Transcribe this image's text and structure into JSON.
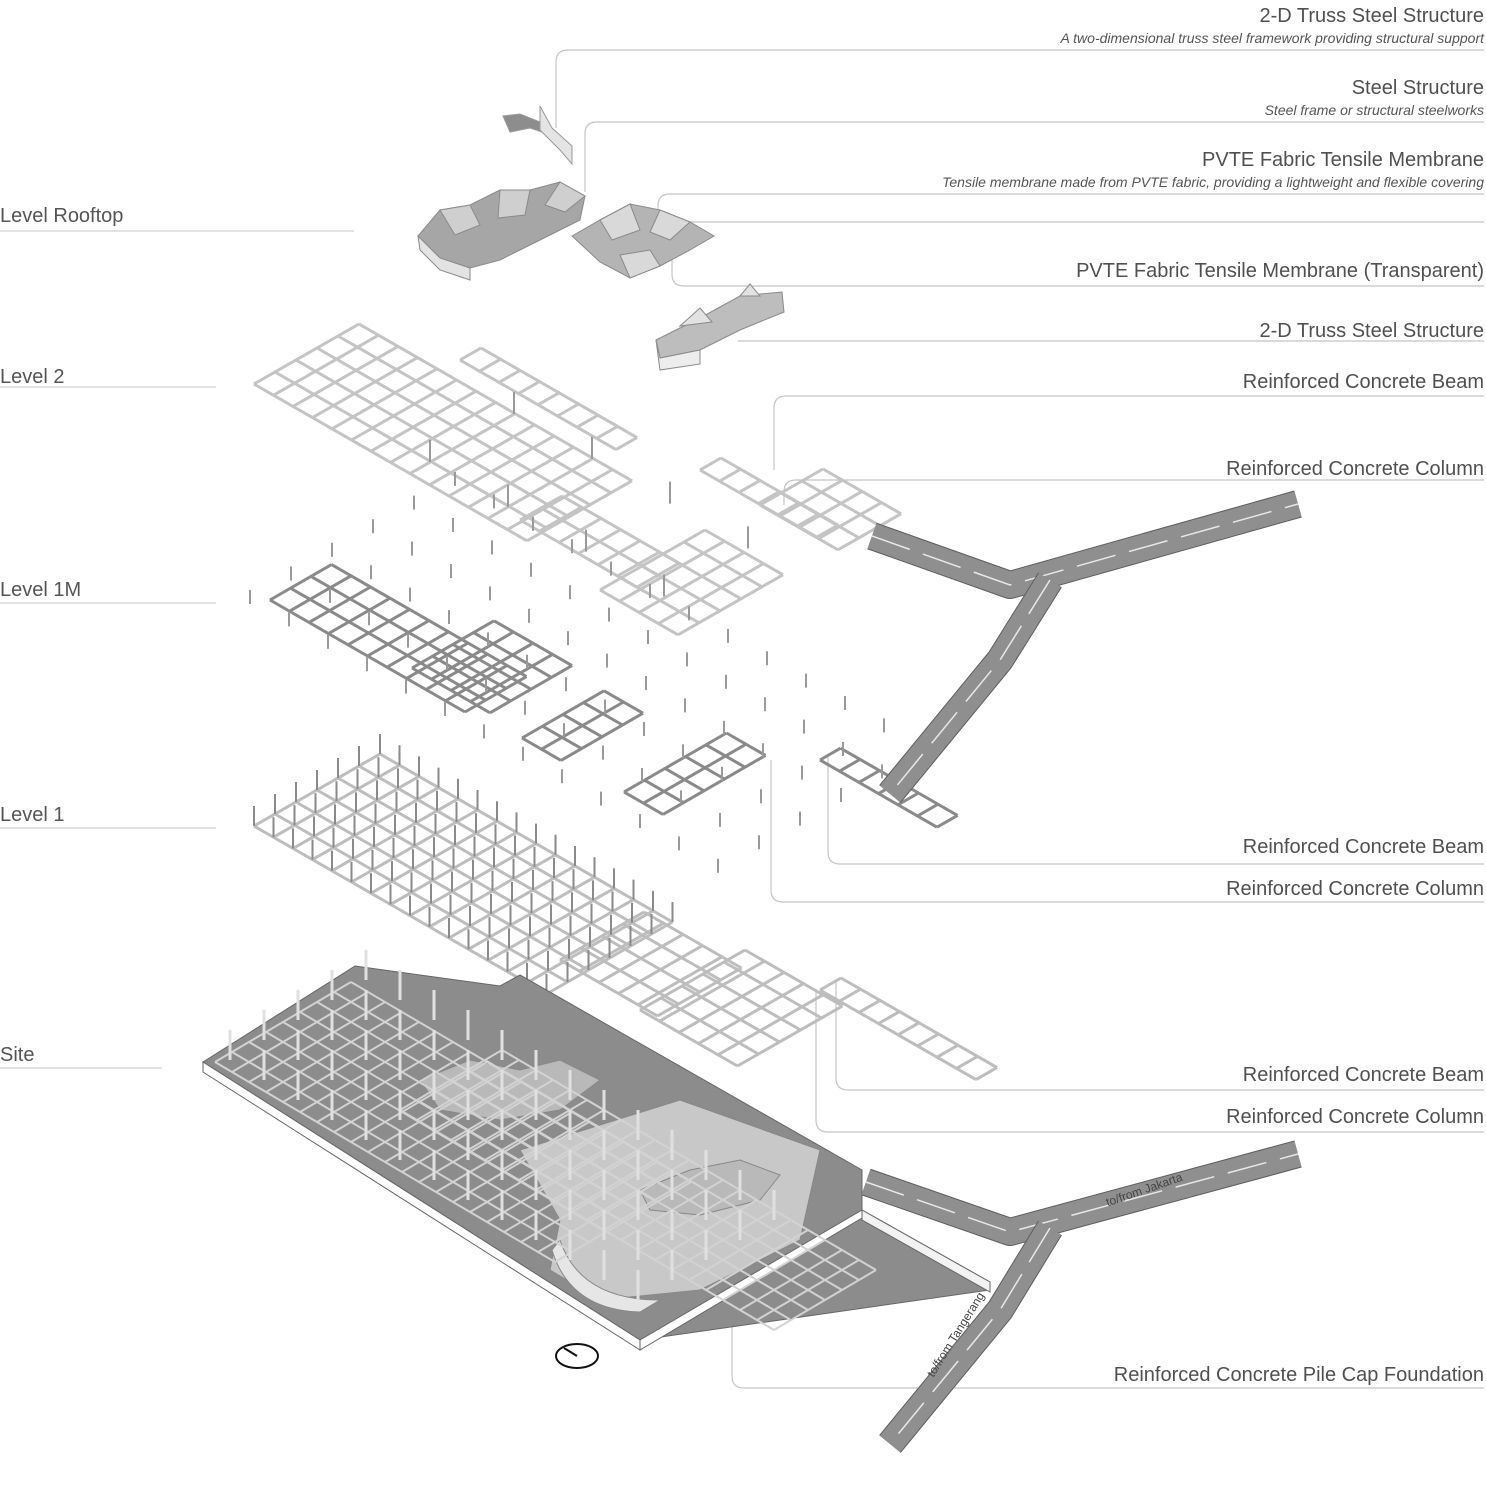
{
  "levels": {
    "rooftop": "Level Rooftop",
    "level2": "Level 2",
    "level1m": "Level 1M",
    "level1": "Level 1",
    "site": "Site"
  },
  "callouts": [
    {
      "title": "2-D Truss Steel Structure",
      "desc": "A two-dimensional truss steel framework providing structural support"
    },
    {
      "title": "Steel Structure",
      "desc": "Steel frame or structural steelworks"
    },
    {
      "title": "PVTE Fabric Tensile Membrane",
      "desc": "Tensile membrane made from PVTE fabric, providing a lightweight and flexible covering"
    },
    {
      "title": "PVTE Fabric Tensile Membrane (Transparent)",
      "desc": ""
    },
    {
      "title": "2-D Truss Steel Structure",
      "desc": ""
    },
    {
      "title": "Reinforced Concrete Beam",
      "desc": ""
    },
    {
      "title": "Reinforced Concrete Column",
      "desc": ""
    },
    {
      "title": "Reinforced Concrete Beam",
      "desc": ""
    },
    {
      "title": "Reinforced Concrete Column",
      "desc": ""
    },
    {
      "title": "Reinforced Concrete Beam",
      "desc": ""
    },
    {
      "title": "Reinforced Concrete Column",
      "desc": ""
    },
    {
      "title": "Reinforced Concrete Pile Cap Foundation",
      "desc": ""
    }
  ],
  "roads": {
    "jakarta": "to/from Jakarta",
    "tangerang": "to/from Tangerang"
  },
  "colors": {
    "line": "#c9c9c9",
    "grid_light": "#c4c4c4",
    "grid_dark": "#8a8a8a",
    "road": "#8f8f8f",
    "site": "#8c8c8c",
    "membrane": "#9a9a9a"
  }
}
